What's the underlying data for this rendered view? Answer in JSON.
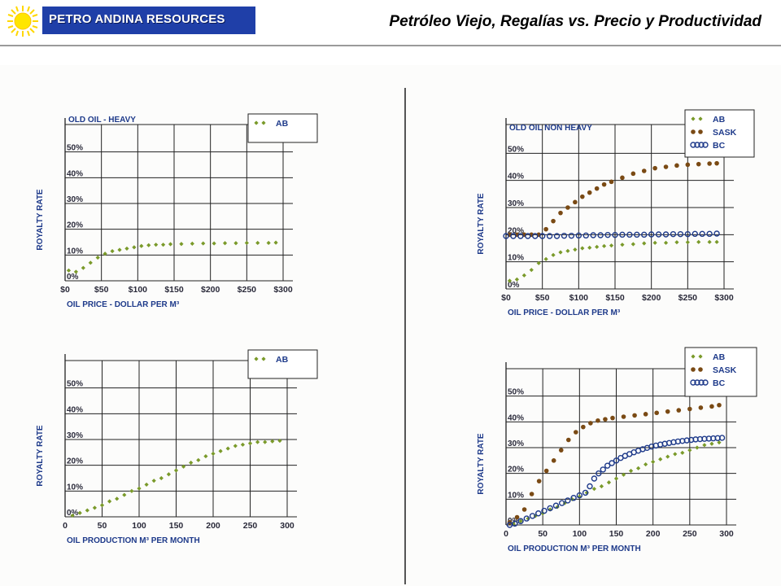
{
  "header": {
    "brand": "PETRO ANDINA RESOURCES",
    "title": "Petróleo Viejo, Regalías vs. Precio y Productividad",
    "brand_color": "#1f3fa8",
    "sun_color": "#ffd700"
  },
  "colors": {
    "AB": "#7a9a2a",
    "SASK": "#7a4a14",
    "BC": "#1e3a8a",
    "grid": "#222222",
    "text_blue": "#1e3a8a"
  },
  "chart_data": [
    {
      "type": "scatter",
      "title": "OLD OIL - HEAVY",
      "xlabel": "OIL PRICE - DOLLAR PER M³",
      "ylabel": "ROYALTY RATE",
      "x_ticks": [
        0,
        50,
        100,
        150,
        200,
        250,
        300
      ],
      "x_tick_labels": [
        "$0",
        "$50",
        "$100",
        "$150",
        "$200",
        "$250",
        "$300"
      ],
      "y_ticks": [
        0,
        10,
        20,
        30,
        40,
        50
      ],
      "y_tick_labels": [
        "0%",
        "10%",
        "20%",
        "30%",
        "40%",
        "50%"
      ],
      "xlim": [
        0,
        300
      ],
      "ylim": [
        0,
        60
      ],
      "legend": "top-right",
      "grid": true,
      "series": [
        {
          "name": "AB",
          "style": "diamond",
          "color": "#7a9a2a",
          "x": [
            5,
            15,
            25,
            35,
            45,
            55,
            65,
            75,
            85,
            95,
            105,
            115,
            125,
            135,
            145,
            160,
            175,
            190,
            205,
            220,
            235,
            250,
            265,
            280,
            290
          ],
          "y": [
            4,
            3.5,
            5,
            7,
            9,
            10.5,
            11.5,
            12,
            12.5,
            13,
            13.5,
            13.8,
            14,
            14,
            14.2,
            14.3,
            14.4,
            14.5,
            14.5,
            14.6,
            14.6,
            14.7,
            14.7,
            14.7,
            14.8
          ]
        }
      ]
    },
    {
      "type": "scatter",
      "title": "OLD OIL NON HEAVY",
      "xlabel": "OIL PRICE - DOLLAR PER M³",
      "ylabel": "ROYALTY RATE",
      "x_ticks": [
        0,
        50,
        100,
        150,
        200,
        250,
        300
      ],
      "x_tick_labels": [
        "$0",
        "$50",
        "$100",
        "$150",
        "$200",
        "$250",
        "$300"
      ],
      "y_ticks": [
        0,
        10,
        20,
        30,
        40,
        50
      ],
      "y_tick_labels": [
        "0%",
        "10%",
        "20%",
        "30%",
        "40%",
        "50%"
      ],
      "xlim": [
        0,
        300
      ],
      "ylim": [
        0,
        60
      ],
      "legend": "top-right",
      "grid": true,
      "series": [
        {
          "name": "AB",
          "style": "diamond",
          "color": "#7a9a2a",
          "x": [
            5,
            15,
            25,
            35,
            45,
            55,
            65,
            75,
            85,
            95,
            105,
            115,
            125,
            135,
            145,
            160,
            175,
            190,
            205,
            220,
            235,
            250,
            265,
            280,
            290
          ],
          "y": [
            3,
            3.5,
            5,
            7,
            9.5,
            11,
            12.5,
            13.5,
            14,
            14.5,
            15,
            15.2,
            15.5,
            15.8,
            16,
            16.3,
            16.5,
            16.8,
            17,
            17,
            17.2,
            17.2,
            17.3,
            17.3,
            17.3
          ]
        },
        {
          "name": "SASK",
          "style": "dot",
          "color": "#7a4a14",
          "x": [
            5,
            15,
            25,
            35,
            45,
            55,
            65,
            75,
            85,
            95,
            105,
            115,
            125,
            135,
            145,
            160,
            175,
            190,
            205,
            220,
            235,
            250,
            265,
            280,
            290
          ],
          "y": [
            20,
            20,
            20,
            20,
            20,
            22,
            25,
            28,
            30,
            32,
            34,
            35.5,
            37,
            38.5,
            39.5,
            41,
            42.5,
            43.5,
            44.5,
            45,
            45.5,
            45.8,
            46,
            46.2,
            46.3
          ]
        },
        {
          "name": "BC",
          "style": "circle",
          "color": "#1e3a8a",
          "x": [
            0,
            10,
            20,
            30,
            40,
            50,
            60,
            70,
            80,
            90,
            100,
            110,
            120,
            130,
            140,
            150,
            160,
            170,
            180,
            190,
            200,
            210,
            220,
            230,
            240,
            250,
            260,
            270,
            280,
            290
          ],
          "y": [
            19.5,
            19.5,
            19.5,
            19.5,
            19.5,
            19.5,
            19.5,
            19.5,
            19.6,
            19.6,
            19.7,
            19.7,
            19.8,
            19.8,
            19.9,
            19.9,
            20,
            20,
            20,
            20,
            20.1,
            20.1,
            20.1,
            20.2,
            20.2,
            20.2,
            20.3,
            20.3,
            20.3,
            20.4
          ]
        }
      ]
    },
    {
      "type": "scatter",
      "title": "",
      "xlabel": "OIL PRODUCTION M³ PER MONTH",
      "ylabel": "ROYALTY RATE",
      "x_ticks": [
        0,
        50,
        100,
        150,
        200,
        250,
        300
      ],
      "x_tick_labels": [
        "0",
        "50",
        "100",
        "150",
        "200",
        "250",
        "300"
      ],
      "y_ticks": [
        0,
        10,
        20,
        30,
        40,
        50
      ],
      "y_tick_labels": [
        "0%",
        "10%",
        "20%",
        "30%",
        "40%",
        "50%"
      ],
      "xlim": [
        0,
        300
      ],
      "ylim": [
        0,
        60
      ],
      "legend": "top-right",
      "grid": true,
      "series": [
        {
          "name": "AB",
          "style": "diamond",
          "color": "#7a9a2a",
          "x": [
            10,
            20,
            30,
            40,
            50,
            60,
            70,
            80,
            90,
            100,
            110,
            120,
            130,
            140,
            150,
            160,
            170,
            180,
            190,
            200,
            210,
            220,
            230,
            240,
            250,
            260,
            270,
            280,
            290
          ],
          "y": [
            0.5,
            1.5,
            2.5,
            3.5,
            4.5,
            6,
            7,
            8.5,
            10,
            11,
            12.5,
            14,
            15,
            16.5,
            18,
            19.5,
            21,
            22,
            23.5,
            24.5,
            25.5,
            26.5,
            27.5,
            28,
            28.5,
            29,
            29,
            29.3,
            29.5
          ]
        }
      ]
    },
    {
      "type": "scatter",
      "title": "",
      "xlabel": "OIL PRODUCTION M³ PER MONTH",
      "ylabel": "ROYALTY RATE",
      "x_ticks": [
        0,
        50,
        100,
        150,
        200,
        250,
        300
      ],
      "x_tick_labels": [
        "0",
        "50",
        "100",
        "150",
        "200",
        "250",
        "300"
      ],
      "y_ticks": [
        0,
        10,
        20,
        30,
        40,
        50
      ],
      "y_tick_labels": [
        "0%",
        "10%",
        "20%",
        "30%",
        "40%",
        "50%"
      ],
      "xlim": [
        0,
        300
      ],
      "ylim": [
        0,
        60
      ],
      "legend": "top-right",
      "grid": true,
      "series": [
        {
          "name": "AB",
          "style": "diamond",
          "color": "#7a9a2a",
          "x": [
            10,
            20,
            30,
            40,
            50,
            60,
            70,
            80,
            90,
            100,
            110,
            120,
            130,
            140,
            150,
            160,
            170,
            180,
            190,
            200,
            210,
            220,
            230,
            240,
            250,
            260,
            270,
            280,
            290
          ],
          "y": [
            0.5,
            1.5,
            2.5,
            3.5,
            4.5,
            6,
            7,
            8.5,
            10,
            11,
            12.5,
            14,
            15,
            16.5,
            18,
            19.5,
            21,
            22,
            23.5,
            24.5,
            25.5,
            26.5,
            27.5,
            28,
            29,
            30,
            31,
            31.5,
            32
          ]
        },
        {
          "name": "SASK",
          "style": "dot",
          "color": "#7a4a14",
          "x": [
            5,
            15,
            25,
            35,
            45,
            55,
            65,
            75,
            85,
            95,
            105,
            115,
            125,
            135,
            145,
            160,
            175,
            190,
            205,
            220,
            235,
            250,
            265,
            280,
            290
          ],
          "y": [
            1,
            3,
            6,
            12,
            17,
            21,
            25,
            29,
            33,
            36,
            38,
            39.5,
            40.5,
            41,
            41.5,
            42,
            42.5,
            43,
            43.5,
            44,
            44.5,
            45,
            45.5,
            46,
            46.5
          ]
        },
        {
          "name": "BC",
          "style": "circle",
          "color": "#1e3a8a",
          "x": [
            5,
            12,
            20,
            28,
            36,
            44,
            52,
            60,
            68,
            76,
            84,
            92,
            100,
            108,
            114,
            120,
            126,
            132,
            138,
            144,
            150,
            156,
            162,
            168,
            174,
            180,
            186,
            192,
            198,
            204,
            210,
            216,
            222,
            228,
            234,
            240,
            246,
            252,
            258,
            264,
            270,
            276,
            282,
            288,
            294
          ],
          "y": [
            0,
            0.5,
            1.5,
            2.5,
            3.5,
            4.5,
            5.5,
            6.5,
            7.5,
            8.5,
            9.5,
            10.5,
            11.5,
            12.5,
            15,
            18,
            20,
            21.5,
            23,
            24,
            25,
            26,
            26.8,
            27.5,
            28.2,
            28.8,
            29.4,
            29.9,
            30.4,
            30.8,
            31.2,
            31.5,
            31.8,
            32.1,
            32.4,
            32.6,
            32.8,
            33,
            33.2,
            33.3,
            33.4,
            33.5,
            33.6,
            33.7,
            33.8
          ]
        }
      ]
    }
  ]
}
